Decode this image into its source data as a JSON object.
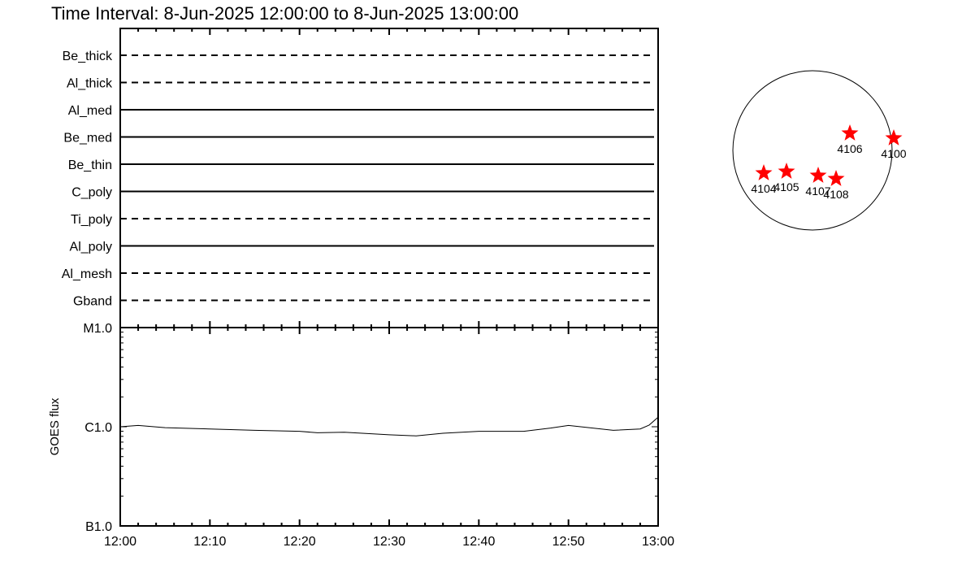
{
  "title": "Time Interval:  8-Jun-2025 12:00:00 to  8-Jun-2025 13:00:00",
  "chart_data": [
    {
      "type": "table",
      "panel": "filter-timeline",
      "rows": [
        {
          "label": "Be_thick",
          "style": "dashed"
        },
        {
          "label": "Al_thick",
          "style": "dashed"
        },
        {
          "label": "Al_med",
          "style": "solid"
        },
        {
          "label": "Be_med",
          "style": "solid"
        },
        {
          "label": "Be_thin",
          "style": "solid"
        },
        {
          "label": "C_poly",
          "style": "solid"
        },
        {
          "label": "Ti_poly",
          "style": "dashed"
        },
        {
          "label": "Al_poly",
          "style": "solid"
        },
        {
          "label": "Al_mesh",
          "style": "dashed"
        },
        {
          "label": "Gband",
          "style": "dashed"
        }
      ]
    },
    {
      "type": "line",
      "ylabel": "GOES flux",
      "yscale": "log",
      "ylim": [
        1e-07,
        1e-05
      ],
      "ytick_labels": [
        "B1.0",
        "C1.0",
        "M1.0"
      ],
      "xlim": [
        "12:00",
        "13:00"
      ],
      "xtick_labels": [
        "12:00",
        "12:10",
        "12:20",
        "12:30",
        "12:40",
        "12:50",
        "13:00"
      ],
      "series": [
        {
          "x": [
            "12:00",
            "12:02",
            "12:05",
            "12:10",
            "12:15",
            "12:20",
            "12:22",
            "12:25",
            "12:30",
            "12:33",
            "12:36",
            "12:40",
            "12:45",
            "12:48",
            "12:50",
            "12:55",
            "12:58",
            "12:59",
            "13:00"
          ],
          "y": [
            1e-06,
            1.03e-06,
            9.8e-07,
            9.5e-07,
            9.2e-07,
            9e-07,
            8.7e-07,
            8.8e-07,
            8.3e-07,
            8.1e-07,
            8.6e-07,
            9e-07,
            9e-07,
            9.7e-07,
            1.03e-06,
            9.2e-07,
            9.5e-07,
            1.04e-06,
            1.25e-06
          ]
        }
      ]
    },
    {
      "type": "scatter",
      "panel": "solar-disk-active-regions",
      "marker_color": "#ff0000",
      "points": [
        {
          "label": "4106"
        },
        {
          "label": "4100"
        },
        {
          "label": "4104"
        },
        {
          "label": "4105"
        },
        {
          "label": "4107"
        },
        {
          "label": "4108"
        }
      ]
    }
  ]
}
